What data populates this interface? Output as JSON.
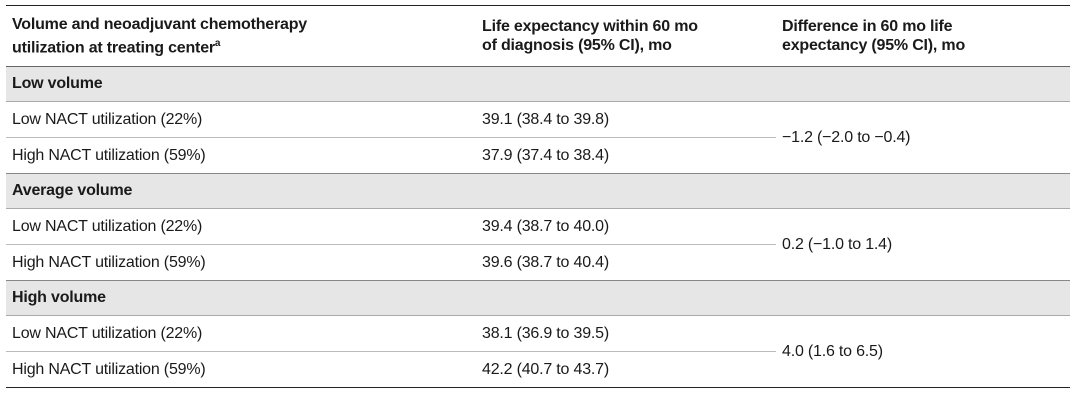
{
  "header": {
    "columns": [
      {
        "lines": [
          "Volume and neoadjuvant chemotherapy",
          "utilization at treating center"
        ],
        "footnote": "a"
      },
      {
        "lines": [
          "Life expectancy within 60 mo",
          "of diagnosis (95% CI), mo"
        ]
      },
      {
        "lines": [
          "Difference in 60 mo life",
          "expectancy (95% CI), mo"
        ]
      }
    ]
  },
  "groups": [
    {
      "label": "Low volume",
      "rows": [
        {
          "label": "Low NACT utilization (22%)",
          "estimate": "39.1 (38.4 to 39.8)"
        },
        {
          "label": "High NACT utilization (59%)",
          "estimate": "37.9 (37.4 to 38.4)"
        }
      ],
      "difference": "−1.2 (−2.0 to −0.4)"
    },
    {
      "label": "Average volume",
      "rows": [
        {
          "label": "Low NACT utilization (22%)",
          "estimate": "39.4 (38.7 to 40.0)"
        },
        {
          "label": "High NACT utilization (59%)",
          "estimate": "39.6 (38.7 to 40.4)"
        }
      ],
      "difference": "0.2 (−1.0 to 1.4)"
    },
    {
      "label": "High volume",
      "rows": [
        {
          "label": "Low NACT utilization (22%)",
          "estimate": "38.1 (36.9 to 39.5)"
        },
        {
          "label": "High NACT utilization (59%)",
          "estimate": "42.2 (40.7 to 43.7)"
        }
      ],
      "difference": "4.0 (1.6 to 6.5)"
    }
  ]
}
